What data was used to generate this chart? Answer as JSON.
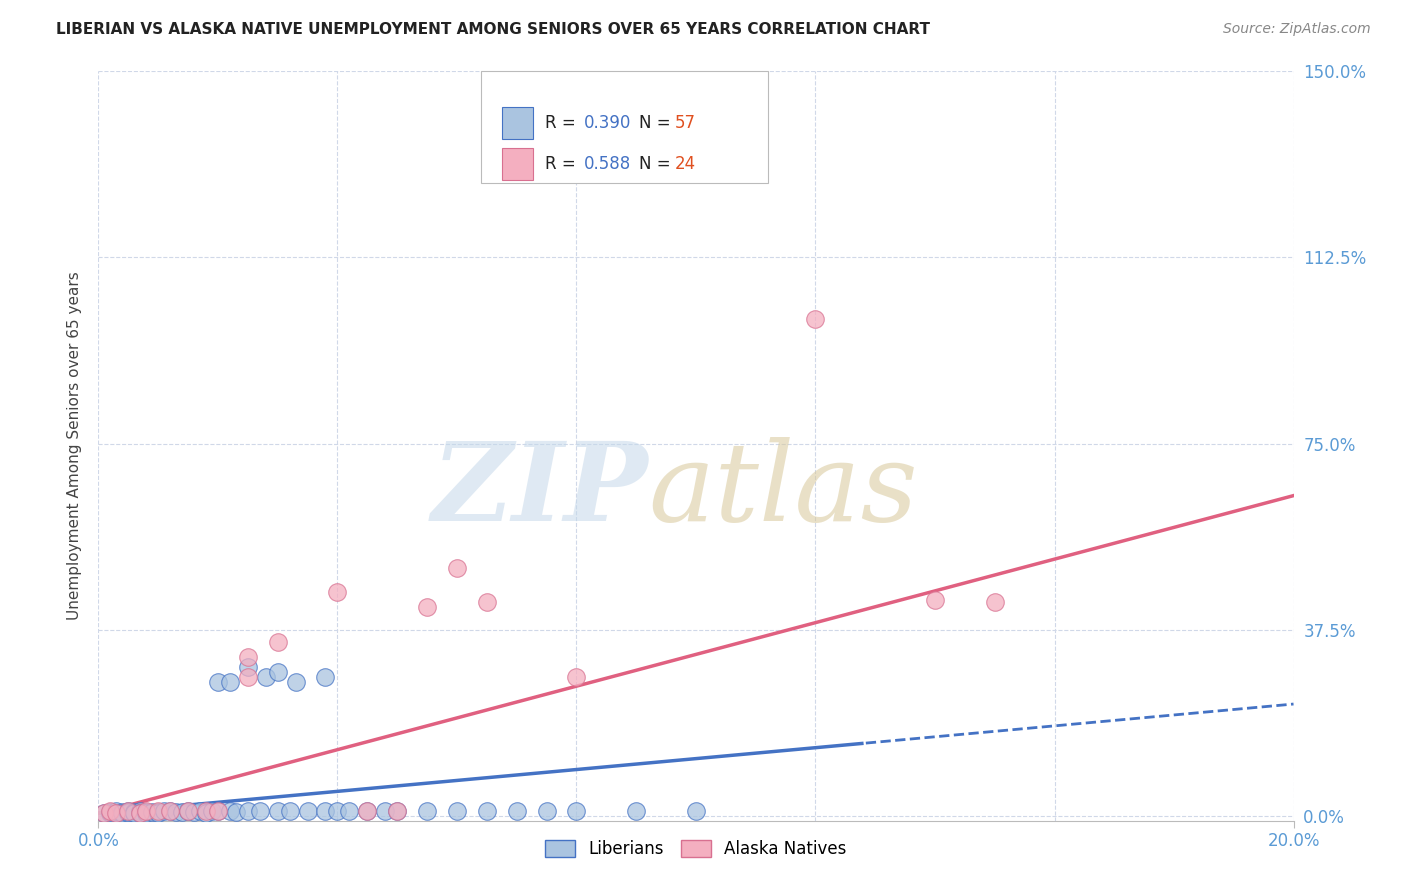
{
  "title": "LIBERIAN VS ALASKA NATIVE UNEMPLOYMENT AMONG SENIORS OVER 65 YEARS CORRELATION CHART",
  "source": "Source: ZipAtlas.com",
  "ylabel": "Unemployment Among Seniors over 65 years",
  "xlim": [
    0.0,
    0.2
  ],
  "ylim": [
    -0.01,
    1.5
  ],
  "yticks": [
    0.0,
    0.375,
    0.75,
    1.125,
    1.5
  ],
  "ytick_labels": [
    "0.0%",
    "37.5%",
    "75.0%",
    "112.5%",
    "150.0%"
  ],
  "xtick_labels": [
    "0.0%",
    "20.0%"
  ],
  "xtick_vals": [
    0.0,
    0.2
  ],
  "liberian_R": 0.39,
  "liberian_N": 57,
  "alaska_R": 0.588,
  "alaska_N": 24,
  "liberian_color": "#aac4e0",
  "alaska_color": "#f4afc0",
  "liberian_line_color": "#4472c4",
  "alaska_line_color": "#e06080",
  "tick_color": "#5b9bd5",
  "background_color": "#ffffff",
  "grid_color": "#d0d8e8",
  "title_fontsize": 11,
  "source_fontsize": 10,
  "tick_fontsize": 12,
  "ylabel_fontsize": 11
}
